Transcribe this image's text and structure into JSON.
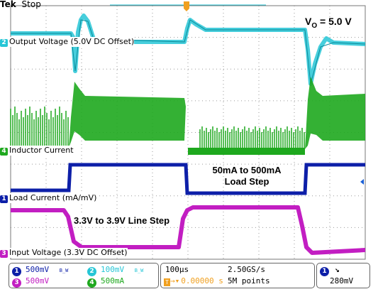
{
  "header": {
    "brand": "Tek",
    "state": "Stop"
  },
  "annotations": {
    "vout": "V",
    "vout_sub": "O",
    "vout_value": " = 5.0 V",
    "load_step_1": "50mA to 500mA",
    "load_step_2": "Load Step",
    "line_step": "3.3V to 3.9V Line Step"
  },
  "trace_labels": {
    "ch2": {
      "num": "2",
      "text": "Output Voltage (5.0V DC Offset)"
    },
    "ch4": {
      "num": "4",
      "text": "Inductor Current"
    },
    "ch1": {
      "num": "1",
      "text": "Load Current (mA/mV)"
    },
    "ch3": {
      "num": "3",
      "text": "Input Voltage (3.3V DC Offset)"
    }
  },
  "channels": [
    {
      "num": "1",
      "scale": "500mV",
      "bw": "B_W"
    },
    {
      "num": "2",
      "scale": "100mV",
      "bw": "B_W"
    },
    {
      "num": "3",
      "scale": "500mV",
      "bw": ""
    },
    {
      "num": "4",
      "scale": "500mA",
      "bw": ""
    }
  ],
  "timebase": {
    "time_div": "100µs",
    "sample_rate": "2.50GS/s",
    "trigger_pos": "0.00000 s",
    "record_length": "5M points",
    "trigger_channel": "1",
    "trigger_slope": "falling",
    "trigger_level": "280mV"
  },
  "colors": {
    "ch1": "#0d1fa8",
    "ch2": "#26c6d6",
    "ch3": "#c21ec2",
    "ch4": "#1ea81e",
    "trigger": "#f0a020",
    "grid": "#9a9a9a"
  }
}
